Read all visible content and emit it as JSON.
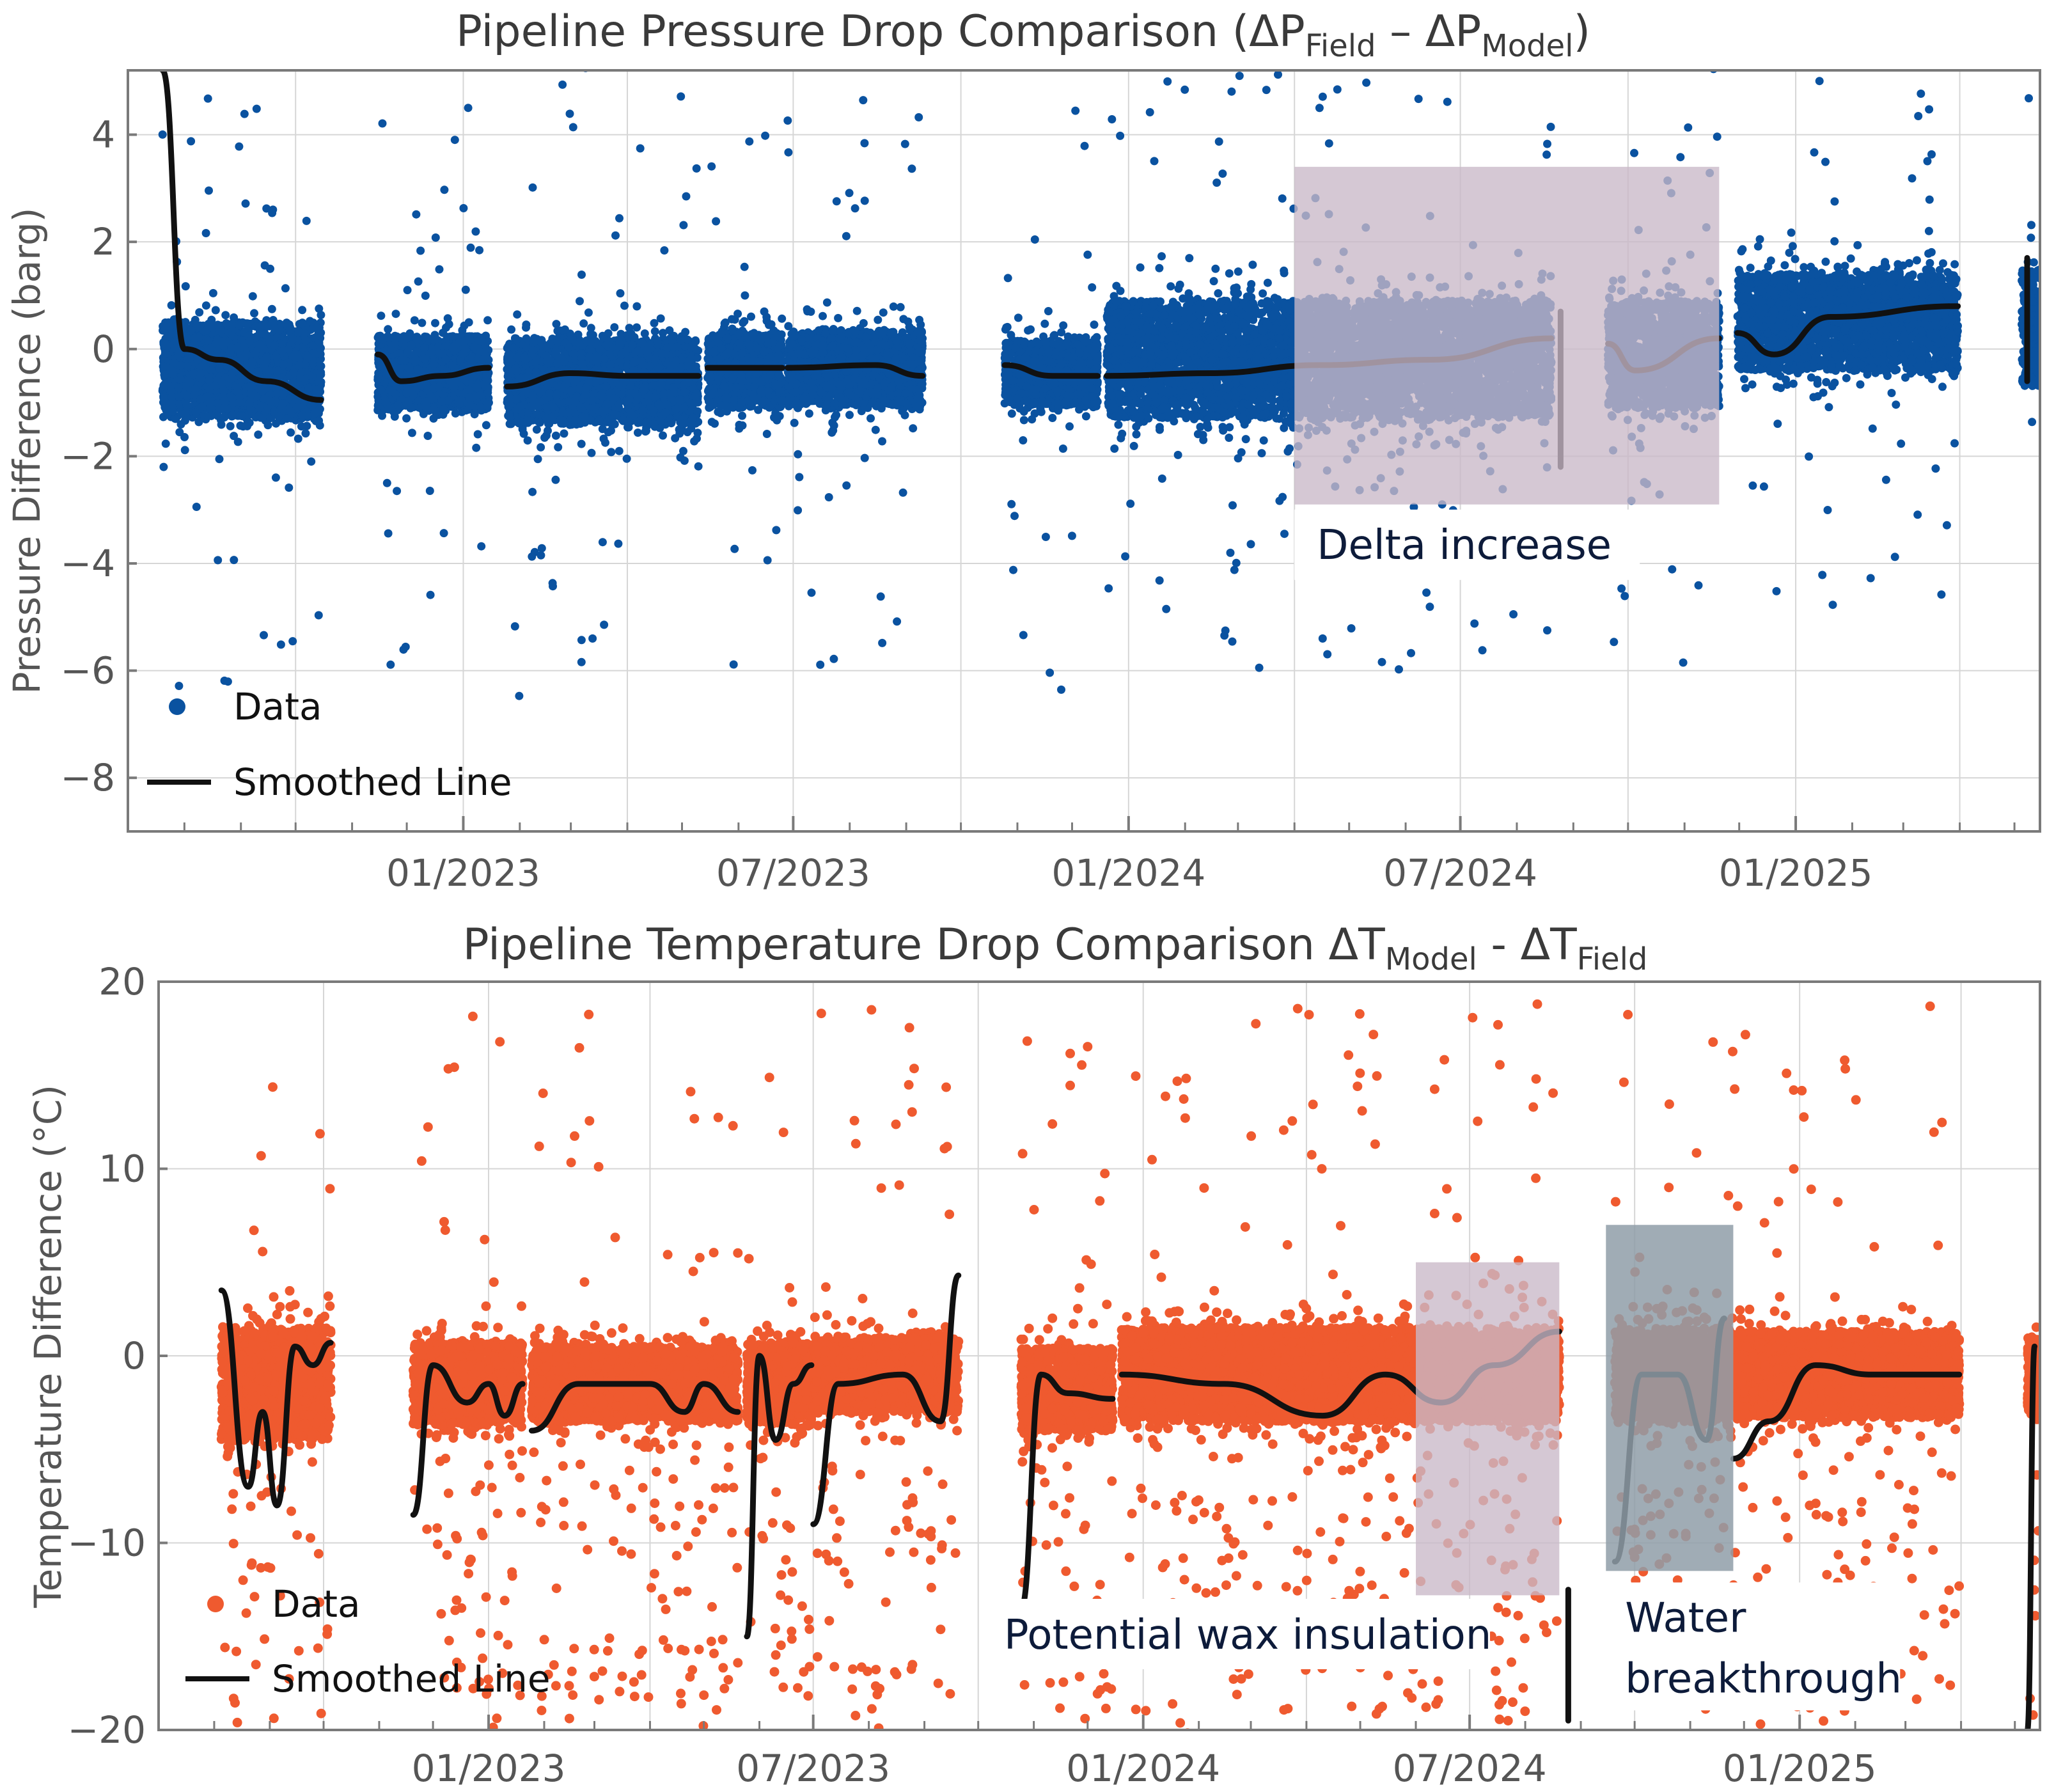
{
  "chart_data": [
    {
      "type": "scatter",
      "title": "Pipeline Pressure Drop Comparison (ΔP",
      "title_parts": [
        "Pipeline Pressure Drop Comparison (ΔP",
        "Field",
        " – ΔP",
        "Model",
        ")"
      ],
      "ylabel": "Pressure Difference (barg)",
      "xlabel": "",
      "ylim": [
        -9.0,
        5.2
      ],
      "xlim": [
        "2022-07-01",
        "2025-05-15"
      ],
      "yticks": [
        4,
        2,
        0,
        -2,
        -4,
        -6,
        -8
      ],
      "ytick_labels": [
        "4",
        "2",
        "0",
        "−2",
        "−4",
        "−6",
        "−8"
      ],
      "xticks": [
        "2023-01-01",
        "2023-07-01",
        "2024-01-01",
        "2024-07-01",
        "2025-01-01"
      ],
      "xtick_labels": [
        "01/2023",
        "07/2023",
        "01/2024",
        "07/2024",
        "01/2025"
      ],
      "grid": true,
      "legend_position": "bottom-left",
      "colors": {
        "data": "#0a52a0",
        "smoothed": "#111111",
        "shade": "#c9b8c8"
      },
      "series": [
        {
          "name": "Data",
          "kind": "scatter",
          "segments": [
            {
              "start": "2022-07-20",
              "end": "2022-10-15",
              "center": -0.4,
              "spread": 0.9
            },
            {
              "start": "2022-11-15",
              "end": "2023-01-15",
              "center": -0.45,
              "spread": 0.7
            },
            {
              "start": "2023-01-25",
              "end": "2023-05-10",
              "center": -0.6,
              "spread": 0.8
            },
            {
              "start": "2023-05-15",
              "end": "2023-06-25",
              "center": -0.4,
              "spread": 0.7
            },
            {
              "start": "2023-06-28",
              "end": "2023-09-10",
              "center": -0.35,
              "spread": 0.7
            },
            {
              "start": "2023-10-25",
              "end": "2023-12-15",
              "center": -0.45,
              "spread": 0.6
            },
            {
              "start": "2023-12-20",
              "end": "2024-08-20",
              "center": -0.2,
              "spread": 1.1
            },
            {
              "start": "2024-09-20",
              "end": "2024-11-20",
              "center": -0.1,
              "spread": 1.0
            },
            {
              "start": "2024-11-30",
              "end": "2025-03-31",
              "center": 0.5,
              "spread": 0.9
            },
            {
              "start": "2025-05-05",
              "end": "2025-05-15",
              "center": 0.4,
              "spread": 1.1
            }
          ]
        },
        {
          "name": "Smoothed Line",
          "kind": "line",
          "segments": [
            [
              [
                "2022-07-20",
                5.2
              ],
              [
                "2022-08-01",
                0.0
              ],
              [
                "2022-08-20",
                -0.2
              ],
              [
                "2022-09-15",
                -0.6
              ],
              [
                "2022-10-15",
                -0.95
              ]
            ],
            [
              [
                "2022-11-15",
                -0.1
              ],
              [
                "2022-11-28",
                -0.6
              ],
              [
                "2022-12-20",
                -0.5
              ],
              [
                "2023-01-15",
                -0.35
              ]
            ],
            [
              [
                "2023-01-25",
                -0.7
              ],
              [
                "2023-03-01",
                -0.45
              ],
              [
                "2023-04-01",
                -0.5
              ],
              [
                "2023-05-10",
                -0.5
              ]
            ],
            [
              [
                "2023-05-15",
                -0.35
              ],
              [
                "2023-06-25",
                -0.35
              ]
            ],
            [
              [
                "2023-06-28",
                -0.35
              ],
              [
                "2023-08-15",
                -0.3
              ],
              [
                "2023-09-10",
                -0.5
              ]
            ],
            [
              [
                "2023-10-25",
                -0.3
              ],
              [
                "2023-11-20",
                -0.5
              ],
              [
                "2023-12-15",
                -0.5
              ]
            ],
            [
              [
                "2023-12-20",
                -0.5
              ],
              [
                "2024-02-15",
                -0.45
              ],
              [
                "2024-04-15",
                -0.3
              ],
              [
                "2024-06-15",
                -0.2
              ],
              [
                "2024-08-20",
                0.2
              ]
            ],
            [
              [
                "2024-08-25",
                -2.2
              ],
              [
                "2024-08-25",
                0.7
              ]
            ],
            [
              [
                "2024-09-20",
                0.1
              ],
              [
                "2024-10-05",
                -0.4
              ],
              [
                "2024-11-20",
                0.2
              ]
            ],
            [
              [
                "2024-11-30",
                0.3
              ],
              [
                "2024-12-20",
                -0.1
              ],
              [
                "2025-01-20",
                0.6
              ],
              [
                "2025-03-31",
                0.8
              ]
            ],
            [
              [
                "2025-05-08",
                1.7
              ],
              [
                "2025-05-08",
                -0.6
              ]
            ]
          ]
        }
      ],
      "annotations": [
        {
          "text": "Delta increase",
          "x_range": [
            "2024-04-01",
            "2024-11-20"
          ],
          "y_range": [
            -2.9,
            3.4
          ]
        }
      ]
    },
    {
      "type": "scatter",
      "title": "Pipeline Temperature Drop Comparison ΔT",
      "title_parts": [
        "Pipeline Temperature Drop Comparison ΔT",
        "Model",
        " - ΔT",
        "Field"
      ],
      "ylabel": "Temperature Difference (°C)",
      "xlabel": "",
      "ylim": [
        -20,
        20
      ],
      "xlim": [
        "2022-07-01",
        "2025-05-15"
      ],
      "yticks": [
        20,
        10,
        0,
        -10,
        -20
      ],
      "ytick_labels": [
        "20",
        "10",
        "0",
        "−10",
        "−20"
      ],
      "xticks": [
        "2023-01-01",
        "2023-07-01",
        "2024-01-01",
        "2024-07-01",
        "2025-01-01"
      ],
      "xtick_labels": [
        "01/2023",
        "07/2023",
        "01/2024",
        "07/2024",
        "01/2025"
      ],
      "grid": true,
      "legend_position": "bottom-left",
      "colors": {
        "data": "#ef5a2f",
        "smoothed": "#111111",
        "shade_wax": "#c9b8c8",
        "shade_water": "#8f9ea8"
      },
      "series": [
        {
          "name": "Data",
          "kind": "scatter",
          "segments": [
            {
              "start": "2022-08-05",
              "end": "2022-10-05",
              "center": -1.5,
              "spread": 3.0
            },
            {
              "start": "2022-11-20",
              "end": "2023-01-20",
              "center": -1.5,
              "spread": 2.2
            },
            {
              "start": "2023-01-25",
              "end": "2023-05-20",
              "center": -1.5,
              "spread": 2.0
            },
            {
              "start": "2023-05-25",
              "end": "2023-06-30",
              "center": -1.5,
              "spread": 2.2
            },
            {
              "start": "2023-07-01",
              "end": "2023-09-20",
              "center": -1.0,
              "spread": 2.0
            },
            {
              "start": "2023-10-25",
              "end": "2023-12-15",
              "center": -1.8,
              "spread": 2.2
            },
            {
              "start": "2023-12-20",
              "end": "2024-08-20",
              "center": -1.0,
              "spread": 2.5
            },
            {
              "start": "2024-09-20",
              "end": "2024-11-25",
              "center": -1.0,
              "spread": 2.5
            },
            {
              "start": "2024-11-25",
              "end": "2025-03-31",
              "center": -1.0,
              "spread": 2.3
            },
            {
              "start": "2025-05-08",
              "end": "2025-05-15",
              "center": -1.0,
              "spread": 2.0
            }
          ]
        },
        {
          "name": "Smoothed Line",
          "kind": "line",
          "segments": [
            [
              [
                "2022-08-05",
                3.5
              ],
              [
                "2022-08-20",
                -7.0
              ],
              [
                "2022-08-28",
                -3.0
              ],
              [
                "2022-09-05",
                -8.0
              ],
              [
                "2022-09-15",
                0.5
              ],
              [
                "2022-09-25",
                -0.5
              ],
              [
                "2022-10-05",
                0.7
              ]
            ],
            [
              [
                "2022-11-20",
                -8.5
              ],
              [
                "2022-12-01",
                -0.5
              ],
              [
                "2022-12-20",
                -2.5
              ],
              [
                "2023-01-01",
                -1.5
              ],
              [
                "2023-01-10",
                -3.2
              ],
              [
                "2023-01-20",
                -1.5
              ]
            ],
            [
              [
                "2023-01-25",
                -4.0
              ],
              [
                "2023-02-20",
                -1.5
              ],
              [
                "2023-04-01",
                -1.5
              ],
              [
                "2023-04-20",
                -3.0
              ],
              [
                "2023-05-01",
                -1.5
              ],
              [
                "2023-05-20",
                -3.0
              ]
            ],
            [
              [
                "2023-05-25",
                -15.0
              ],
              [
                "2023-06-01",
                0.0
              ],
              [
                "2023-06-10",
                -4.5
              ],
              [
                "2023-06-20",
                -1.5
              ],
              [
                "2023-06-30",
                -0.5
              ]
            ],
            [
              [
                "2023-07-01",
                -9.0
              ],
              [
                "2023-07-15",
                -1.5
              ],
              [
                "2023-08-20",
                -1.0
              ],
              [
                "2023-09-10",
                -3.5
              ],
              [
                "2023-09-20",
                4.3
              ]
            ],
            [
              [
                "2023-10-25",
                -13.5
              ],
              [
                "2023-11-05",
                -1.0
              ],
              [
                "2023-11-20",
                -2.0
              ],
              [
                "2023-12-15",
                -2.3
              ]
            ],
            [
              [
                "2023-12-20",
                -1.0
              ],
              [
                "2024-02-15",
                -1.5
              ],
              [
                "2024-04-10",
                -3.2
              ],
              [
                "2024-05-15",
                -1.0
              ],
              [
                "2024-06-15",
                -2.5
              ],
              [
                "2024-07-15",
                -0.5
              ],
              [
                "2024-08-20",
                1.3
              ]
            ],
            [
              [
                "2024-08-25",
                -19.5
              ],
              [
                "2024-08-25",
                -12.5
              ]
            ],
            [
              [
                "2024-09-20",
                -11.0
              ],
              [
                "2024-10-05",
                -1.0
              ],
              [
                "2024-10-25",
                -1.0
              ],
              [
                "2024-11-10",
                -4.5
              ],
              [
                "2024-11-20",
                2.0
              ]
            ],
            [
              [
                "2024-11-25",
                -5.5
              ],
              [
                "2024-12-15",
                -3.5
              ],
              [
                "2025-01-10",
                -0.5
              ],
              [
                "2025-02-10",
                -1.0
              ],
              [
                "2025-03-31",
                -1.0
              ]
            ],
            [
              [
                "2025-05-08",
                -20.0
              ],
              [
                "2025-05-12",
                0.5
              ]
            ]
          ]
        }
      ],
      "annotations": [
        {
          "text": "Potential wax insulation",
          "x_range": [
            "2024-06-01",
            "2024-08-20"
          ],
          "y_range": [
            -12.8,
            5.0
          ]
        },
        {
          "text_lines": [
            "Water",
            "breakthrough"
          ],
          "x_range": [
            "2024-09-15",
            "2024-11-25"
          ],
          "y_range": [
            -11.5,
            7.0
          ]
        }
      ]
    }
  ]
}
